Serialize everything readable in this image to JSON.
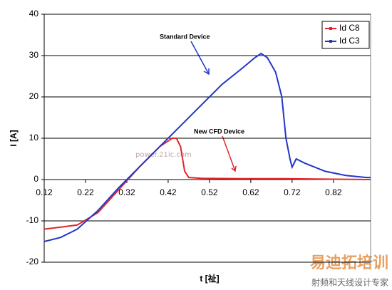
{
  "chart_data": {
    "type": "line",
    "x_label": "t [祉]",
    "y_label": "I [A]",
    "xlim": [
      0.12,
      0.91
    ],
    "ylim": [
      -20,
      40
    ],
    "xticks": [
      0.12,
      0.22,
      0.32,
      0.42,
      0.52,
      0.62,
      0.72,
      0.82
    ],
    "yticks": [
      -20,
      -10,
      0,
      10,
      20,
      30,
      40
    ],
    "grid": true,
    "legend": "upper right",
    "annotations": [
      "Standard Device",
      "New CFD Device"
    ],
    "watermarks": [
      "power.21ic.com",
      "易迪拓培训",
      "射频和天线设计专家"
    ],
    "series": [
      {
        "name": "Id C8",
        "color": "#e0262a",
        "x": [
          0.12,
          0.16,
          0.2,
          0.25,
          0.3,
          0.35,
          0.4,
          0.43,
          0.44,
          0.45,
          0.455,
          0.46,
          0.47,
          0.5,
          0.6,
          0.7,
          0.8,
          0.91
        ],
        "values": [
          -12,
          -11.5,
          -11,
          -8,
          -2.5,
          3,
          8,
          10,
          10,
          8,
          5,
          2,
          0.5,
          0.3,
          0.2,
          0.2,
          0.1,
          0
        ]
      },
      {
        "name": "Id C3",
        "color": "#2236c8",
        "x": [
          0.12,
          0.16,
          0.2,
          0.25,
          0.3,
          0.35,
          0.4,
          0.45,
          0.5,
          0.55,
          0.6,
          0.63,
          0.645,
          0.66,
          0.68,
          0.695,
          0.705,
          0.715,
          0.72,
          0.73,
          0.75,
          0.8,
          0.85,
          0.9,
          0.91
        ],
        "values": [
          -15,
          -14,
          -12,
          -7.5,
          -2,
          3,
          8,
          13,
          18,
          23,
          27,
          29.5,
          30.5,
          29.5,
          26,
          20,
          10,
          5,
          3,
          5,
          4,
          2,
          1,
          0.5,
          0.5
        ]
      }
    ]
  }
}
